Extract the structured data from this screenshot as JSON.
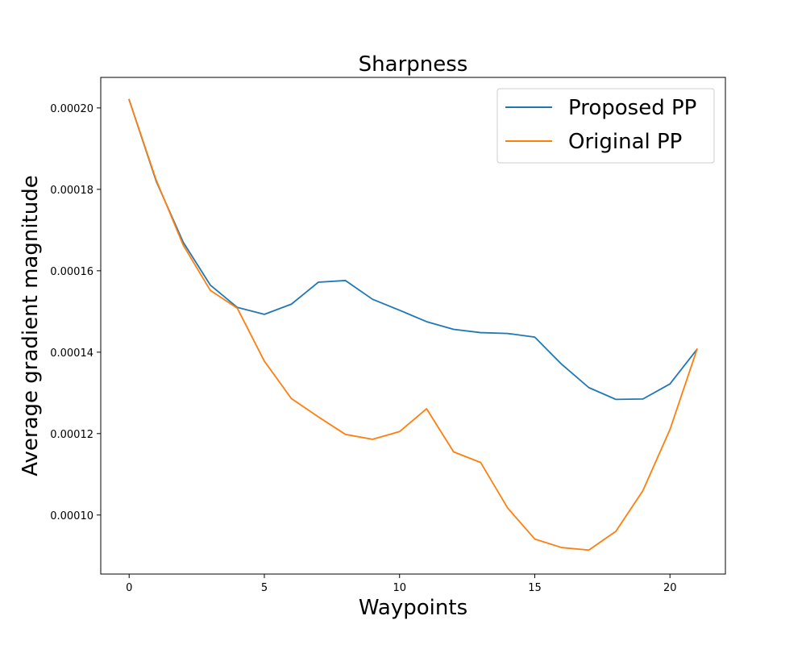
{
  "chart_data": {
    "type": "line",
    "title": "Sharpness",
    "xlabel": "Waypoints",
    "ylabel": "Average gradient magnitude",
    "xlim": [
      -1.05,
      22.05
    ],
    "ylim": [
      8.55e-05,
      0.0002075
    ],
    "xticks": [
      0,
      5,
      10,
      15,
      20
    ],
    "xtick_labels": [
      "0",
      "5",
      "10",
      "15",
      "20"
    ],
    "yticks": [
      0.0001,
      0.00012,
      0.00014,
      0.00016,
      0.00018,
      0.0002
    ],
    "ytick_labels": [
      "0.00010",
      "0.00012",
      "0.00014",
      "0.00016",
      "0.00018",
      "0.00020"
    ],
    "grid": false,
    "legend_position": "top-right",
    "x": [
      0,
      1,
      2,
      3,
      4,
      5,
      6,
      7,
      8,
      9,
      10,
      11,
      12,
      13,
      14,
      15,
      16,
      17,
      18,
      19,
      20,
      21
    ],
    "series": [
      {
        "name": "Proposed PP",
        "color": "#1f77b4",
        "values": [
          0.000202,
          0.000182,
          0.000167,
          0.0001565,
          0.000151,
          0.0001493,
          0.0001518,
          0.0001572,
          0.0001576,
          0.000153,
          0.0001503,
          0.0001475,
          0.0001456,
          0.0001448,
          0.0001446,
          0.0001437,
          0.000137,
          0.0001313,
          0.0001284,
          0.0001285,
          0.0001322,
          0.0001407
        ]
      },
      {
        "name": "Original PP",
        "color": "#ff7f0e",
        "values": [
          0.000202,
          0.0001823,
          0.0001663,
          0.0001552,
          0.0001508,
          0.0001378,
          0.0001286,
          0.0001241,
          0.0001198,
          0.0001186,
          0.0001205,
          0.0001261,
          0.0001155,
          0.0001129,
          0.0001017,
          9.41e-05,
          9.2e-05,
          9.14e-05,
          9.6e-05,
          0.000106,
          0.000121,
          0.0001407
        ]
      }
    ]
  }
}
